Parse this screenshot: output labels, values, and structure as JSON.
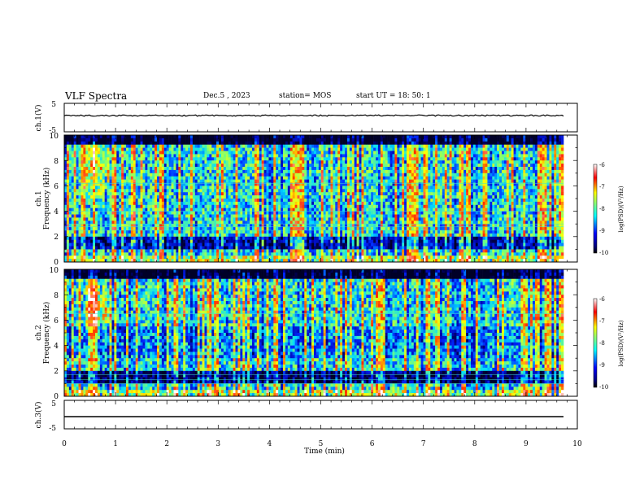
{
  "header": {
    "title": "VLF Spectra",
    "date": "Dec.5 , 2023",
    "station": "station= MOS",
    "start": "start UT = 18: 50: 1"
  },
  "colors": {
    "jet": [
      "#00007f",
      "#0000ff",
      "#00ffff",
      "#7fff7f",
      "#ffff00",
      "#ff0000",
      "#ffffff"
    ],
    "trace": "#000000"
  },
  "chart_data": [
    {
      "type": "line",
      "panel": "ch1-waveform",
      "ylabel": "ch.1(V)",
      "ylim": [
        -5,
        5
      ],
      "yticks": [
        "5",
        "-5"
      ],
      "values": "flat trace near 0",
      "xlim": [
        0,
        10
      ]
    },
    {
      "type": "heatmap",
      "panel": "ch1-spectrogram",
      "ylabel_lines": [
        "ch.1",
        "Frequency (kHz)"
      ],
      "ylim": [
        0,
        10
      ],
      "yticks": [
        "0",
        "2",
        "4",
        "6",
        "8",
        "10"
      ],
      "xlim": [
        0,
        10
      ],
      "colorbar": {
        "label": "log(PSD)(V²/Hz)",
        "range": [
          -10,
          -6
        ],
        "ticks": [
          "-6",
          "-7",
          "-8",
          "-9",
          "-10"
        ]
      }
    },
    {
      "type": "heatmap",
      "panel": "ch2-spectrogram",
      "ylabel_lines": [
        "ch.2",
        "Frequency (kHz)"
      ],
      "ylim": [
        0,
        10
      ],
      "yticks": [
        "0",
        "2",
        "4",
        "6",
        "8",
        "10"
      ],
      "xlim": [
        0,
        10
      ],
      "colorbar": {
        "label": "log(PSD)(V²/Hz)",
        "range": [
          -10,
          -6
        ],
        "ticks": [
          "-6",
          "-7",
          "-8",
          "-9",
          "-10"
        ]
      }
    },
    {
      "type": "line",
      "panel": "ch3-waveform",
      "ylabel": "ch.3(V)",
      "ylim": [
        -5,
        5
      ],
      "yticks": [
        "5",
        "-5"
      ],
      "values": "flat trace near 0",
      "xlim": [
        0,
        10
      ],
      "xlabel": "Time (min)",
      "xticks": [
        "0",
        "1",
        "2",
        "3",
        "4",
        "5",
        "6",
        "7",
        "8",
        "9",
        "10"
      ]
    }
  ]
}
